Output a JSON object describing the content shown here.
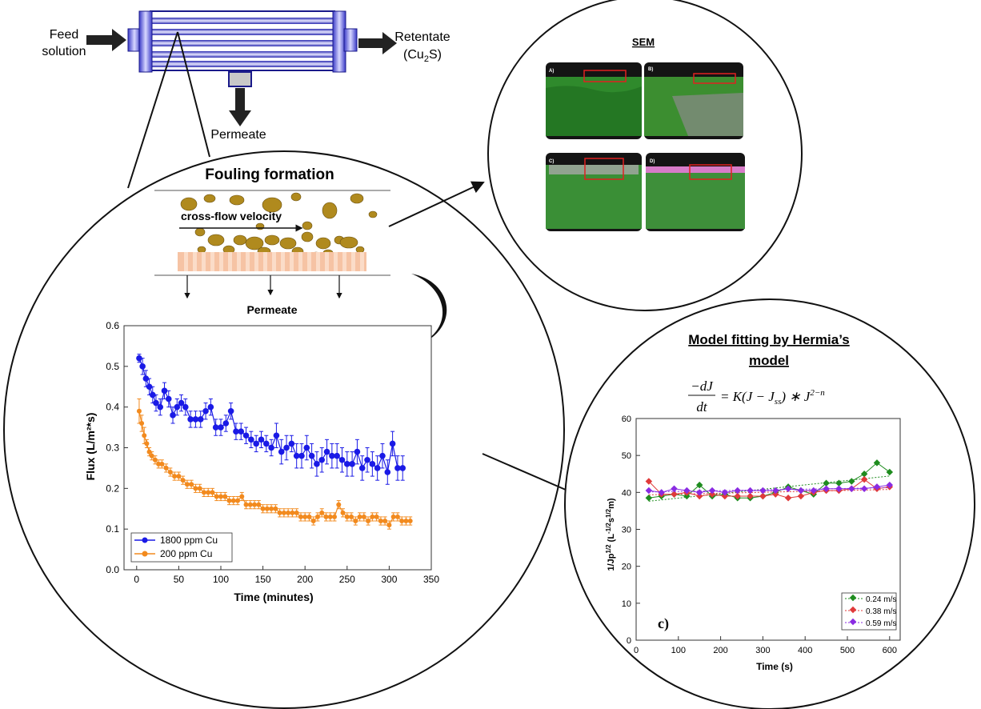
{
  "module": {
    "feed_line1": "Feed",
    "feed_line2": "solution",
    "retentate_line1": "Retentate",
    "retentate_pre": "(Cu",
    "retentate_sub": "2",
    "retentate_post": "S)",
    "permeate": "Permeate"
  },
  "fouling": {
    "title": "Fouling formation",
    "velocity_label": "cross-flow velocity",
    "permeate_label": "Permeate",
    "colors": {
      "particle": "#B08A1E",
      "membrane": "#F6C3A4"
    }
  },
  "sem": {
    "title": "SEM",
    "panels": [
      "A)",
      "B)",
      "C)",
      "D)"
    ]
  },
  "hermia": {
    "title_line1": "Model fitting by Hermia’s",
    "title_line2": "model",
    "eq_num": "−dJ",
    "eq_den": "dt",
    "eq_rhs": "= K(J − J",
    "eq_sub": "ss",
    "eq_rhs2": ") ∗ J",
    "eq_sup": "2−n"
  },
  "chart_data": [
    {
      "type": "scatter",
      "xlabel": "Time (minutes)",
      "ylabel": "Flux (L/m²*s)",
      "xlim": [
        -15,
        350
      ],
      "ylim": [
        0,
        0.6
      ],
      "xticks": [
        0,
        50,
        100,
        150,
        200,
        250,
        300,
        350
      ],
      "yticks": [
        0.0,
        0.1,
        0.2,
        0.3,
        0.4,
        0.5,
        0.6
      ],
      "legend_position": "bottom-left",
      "series": [
        {
          "name": "1800 ppm Cu",
          "color": "#1A1AE6",
          "x": [
            3,
            7,
            11,
            15,
            19,
            23,
            28,
            33,
            38,
            43,
            48,
            53,
            58,
            64,
            70,
            76,
            82,
            88,
            94,
            100,
            106,
            112,
            118,
            124,
            130,
            136,
            142,
            148,
            154,
            160,
            166,
            172,
            178,
            184,
            190,
            196,
            202,
            208,
            214,
            220,
            226,
            232,
            238,
            244,
            250,
            256,
            262,
            268,
            274,
            280,
            286,
            292,
            298,
            304,
            310,
            316
          ],
          "y": [
            0.52,
            0.5,
            0.47,
            0.45,
            0.43,
            0.41,
            0.4,
            0.44,
            0.42,
            0.38,
            0.4,
            0.41,
            0.4,
            0.37,
            0.37,
            0.37,
            0.39,
            0.4,
            0.35,
            0.35,
            0.36,
            0.39,
            0.34,
            0.34,
            0.33,
            0.32,
            0.31,
            0.32,
            0.31,
            0.3,
            0.33,
            0.29,
            0.3,
            0.31,
            0.28,
            0.28,
            0.3,
            0.28,
            0.26,
            0.27,
            0.29,
            0.28,
            0.28,
            0.27,
            0.26,
            0.26,
            0.29,
            0.25,
            0.27,
            0.26,
            0.25,
            0.28,
            0.24,
            0.31,
            0.25,
            0.25
          ],
          "err": [
            0.01,
            0.02,
            0.02,
            0.02,
            0.02,
            0.02,
            0.02,
            0.02,
            0.02,
            0.02,
            0.02,
            0.02,
            0.02,
            0.02,
            0.02,
            0.02,
            0.02,
            0.02,
            0.02,
            0.02,
            0.02,
            0.02,
            0.02,
            0.02,
            0.02,
            0.02,
            0.02,
            0.02,
            0.02,
            0.02,
            0.03,
            0.03,
            0.03,
            0.02,
            0.03,
            0.03,
            0.03,
            0.03,
            0.03,
            0.03,
            0.03,
            0.03,
            0.03,
            0.03,
            0.03,
            0.03,
            0.03,
            0.03,
            0.03,
            0.03,
            0.03,
            0.03,
            0.03,
            0.03,
            0.03,
            0.03
          ]
        },
        {
          "name": "200 ppm Cu",
          "color": "#F28A1E",
          "x": [
            3,
            6,
            9,
            12,
            15,
            18,
            22,
            26,
            30,
            35,
            40,
            45,
            50,
            55,
            60,
            65,
            70,
            75,
            80,
            85,
            90,
            95,
            100,
            105,
            110,
            115,
            120,
            125,
            130,
            135,
            140,
            145,
            150,
            155,
            160,
            165,
            170,
            175,
            180,
            185,
            190,
            195,
            200,
            205,
            210,
            215,
            220,
            225,
            230,
            235,
            240,
            245,
            250,
            255,
            260,
            265,
            270,
            275,
            280,
            285,
            290,
            295,
            300,
            305,
            310,
            315,
            320,
            325
          ],
          "y": [
            0.39,
            0.36,
            0.33,
            0.31,
            0.29,
            0.28,
            0.27,
            0.26,
            0.26,
            0.25,
            0.24,
            0.23,
            0.23,
            0.22,
            0.21,
            0.21,
            0.2,
            0.2,
            0.19,
            0.19,
            0.19,
            0.18,
            0.18,
            0.18,
            0.17,
            0.17,
            0.17,
            0.18,
            0.16,
            0.16,
            0.16,
            0.16,
            0.15,
            0.15,
            0.15,
            0.15,
            0.14,
            0.14,
            0.14,
            0.14,
            0.14,
            0.13,
            0.13,
            0.13,
            0.12,
            0.13,
            0.14,
            0.13,
            0.13,
            0.13,
            0.16,
            0.14,
            0.13,
            0.13,
            0.12,
            0.13,
            0.13,
            0.12,
            0.13,
            0.13,
            0.12,
            0.12,
            0.11,
            0.13,
            0.13,
            0.12,
            0.12,
            0.12
          ],
          "err": [
            0.03,
            0.02,
            0.02,
            0.01,
            0.01,
            0.01,
            0.01,
            0.01,
            0.01,
            0.01,
            0.01,
            0.01,
            0.01,
            0.01,
            0.01,
            0.01,
            0.01,
            0.01,
            0.01,
            0.01,
            0.01,
            0.01,
            0.01,
            0.01,
            0.01,
            0.01,
            0.01,
            0.01,
            0.01,
            0.01,
            0.01,
            0.01,
            0.01,
            0.01,
            0.01,
            0.01,
            0.01,
            0.01,
            0.01,
            0.01,
            0.01,
            0.01,
            0.01,
            0.01,
            0.01,
            0.01,
            0.01,
            0.01,
            0.01,
            0.01,
            0.01,
            0.01,
            0.01,
            0.01,
            0.01,
            0.01,
            0.01,
            0.01,
            0.01,
            0.01,
            0.01,
            0.01,
            0.01,
            0.01,
            0.01,
            0.01,
            0.01,
            0.01
          ]
        }
      ]
    },
    {
      "type": "line",
      "xlabel": "Time (s)",
      "ylabel": "1/Jp¹ᐟ² (L⁻¹ᐟ²s¹ᐟ²m)",
      "xlim": [
        0,
        625
      ],
      "ylim": [
        0,
        60
      ],
      "xticks": [
        0,
        100,
        200,
        300,
        400,
        500,
        600
      ],
      "yticks": [
        0,
        10,
        20,
        30,
        40,
        50,
        60
      ],
      "panel_label": "c)",
      "legend_position": "bottom-right",
      "series": [
        {
          "name": "0.24 m/s",
          "color": "#1E8C1E",
          "x": [
            30,
            60,
            90,
            120,
            150,
            180,
            210,
            240,
            270,
            300,
            330,
            360,
            390,
            420,
            450,
            480,
            510,
            540,
            570,
            600
          ],
          "y": [
            38.5,
            39.0,
            39.5,
            39.0,
            42.0,
            39.0,
            39.5,
            38.5,
            38.5,
            39.0,
            40.0,
            41.5,
            40.5,
            39.5,
            42.5,
            42.5,
            43.0,
            45.0,
            48.0,
            45.5
          ]
        },
        {
          "name": "0.38 m/s",
          "color": "#E03A3A",
          "x": [
            30,
            60,
            90,
            120,
            150,
            180,
            210,
            240,
            270,
            300,
            330,
            360,
            390,
            420,
            450,
            480,
            510,
            540,
            570,
            600
          ],
          "y": [
            43.0,
            39.5,
            39.5,
            40.0,
            39.0,
            39.5,
            39.0,
            39.0,
            39.0,
            39.0,
            39.5,
            38.5,
            39.0,
            40.0,
            40.5,
            40.5,
            41.0,
            43.5,
            41.0,
            41.5
          ]
        },
        {
          "name": "0.59 m/s",
          "color": "#8A2BE2",
          "x": [
            30,
            60,
            90,
            120,
            150,
            180,
            210,
            240,
            270,
            300,
            330,
            360,
            390,
            420,
            450,
            480,
            510,
            540,
            570,
            600
          ],
          "y": [
            40.5,
            40.0,
            41.0,
            40.5,
            40.0,
            40.5,
            40.0,
            40.5,
            40.5,
            40.5,
            40.5,
            41.0,
            40.5,
            40.5,
            41.0,
            41.0,
            41.0,
            41.0,
            41.5,
            42.0
          ]
        }
      ]
    }
  ]
}
